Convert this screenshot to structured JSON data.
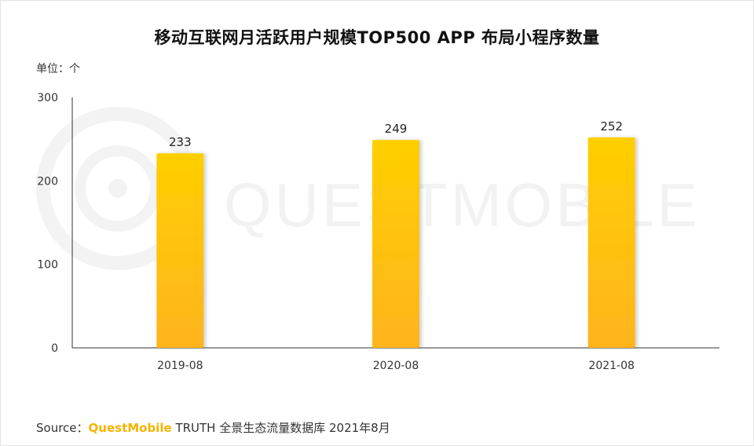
{
  "title": "移动互联网月活跃用户规模TOP500 APP 布局小程序数量",
  "unit_label": "单位：个",
  "watermark": "QUESTMOBILE",
  "source": {
    "prefix": "Source：",
    "brand": "QuestMobile",
    "suffix": " TRUTH 全景生态流量数据库 2021年8月"
  },
  "colors": {
    "bar_top": "#ffcf00",
    "bar_bottom": "#ffb41e",
    "axis": "#333333"
  },
  "chart_data": {
    "type": "bar",
    "categories": [
      "2019-08",
      "2020-08",
      "2021-08"
    ],
    "values": [
      233,
      249,
      252
    ],
    "ylim": [
      0,
      300
    ],
    "yticks": [
      0,
      100,
      200,
      300
    ],
    "grid": false,
    "legend": "none"
  }
}
